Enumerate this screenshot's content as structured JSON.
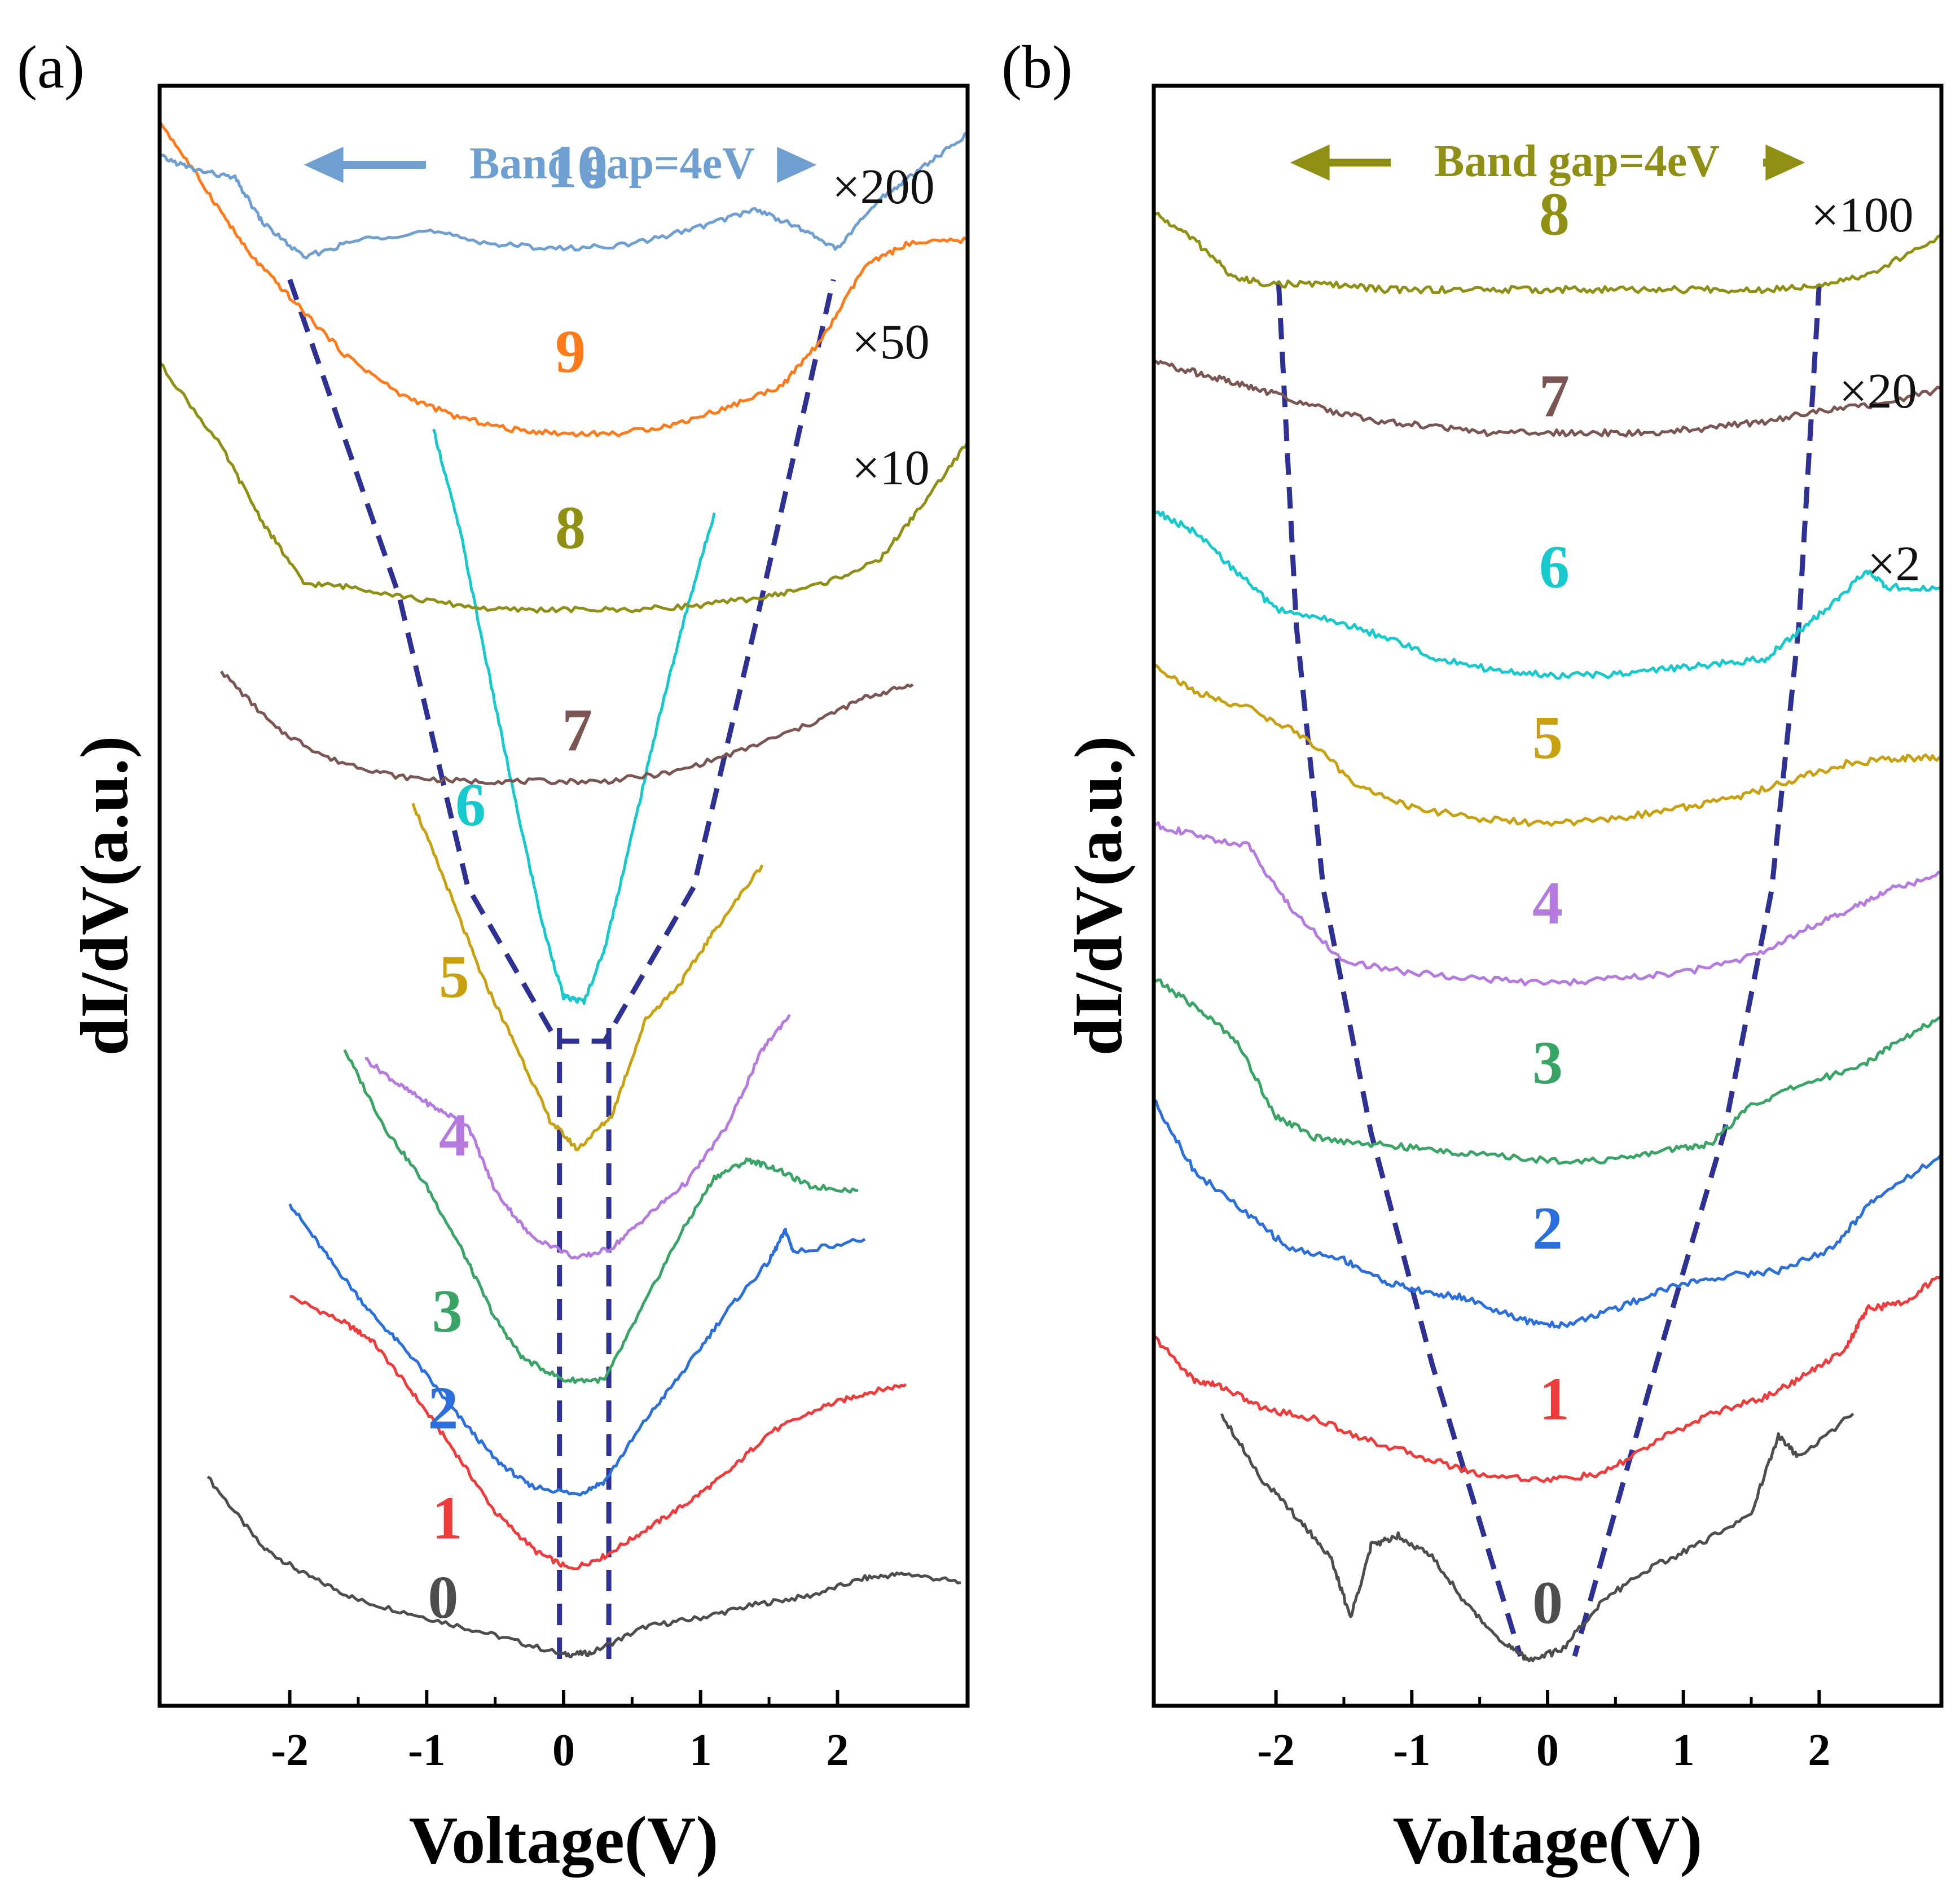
{
  "colors": {
    "curve_0": "#4d4d4d",
    "curve_1": "#ef3b3b",
    "curve_2": "#2a6fdb",
    "curve_3": "#3aa366",
    "curve_4": "#b57ae0",
    "curve_5": "#c9a010",
    "curve_6": "#17c8cc",
    "curve_7": "#7a5552",
    "curve_8": "#8f8f14",
    "curve_9": "#ff7a1a",
    "curve_10": "#6f9fd0",
    "guide_line": "#2e3192",
    "band_gap_a": "#6f9fd0",
    "band_gap_b": "#8f8f14"
  },
  "chart_data": [
    {
      "panel": "(a)",
      "type": "line",
      "xlabel": "Voltage(V)",
      "ylabel": "dI/dV(a.u.)",
      "xlim": [
        -2.95,
        2.95
      ],
      "xticks": [
        "-2",
        "-1",
        "0",
        "1",
        "2"
      ],
      "xtick_values": [
        -2,
        -1,
        0,
        1,
        2
      ],
      "band_gap_label": "Band gap=4eV",
      "band_gap_range": [
        -2.0,
        1.95
      ],
      "scale_labels": [
        {
          "text": "×200",
          "series": "10"
        },
        {
          "text": "×50",
          "series": "9"
        },
        {
          "text": "×10",
          "series": "8"
        }
      ],
      "guide_lines": [
        {
          "style": "dashed",
          "points": [
            [
              -2.0,
              10.2
            ],
            [
              -1.2,
              6.6
            ],
            [
              -0.7,
              3.3
            ],
            [
              -0.05,
              1.55
            ],
            [
              0.3,
              1.55
            ],
            [
              0.95,
              3.3
            ],
            [
              1.45,
              6.6
            ],
            [
              1.97,
              10.2
            ]
          ]
        },
        {
          "style": "dashed",
          "points": [
            [
              -0.03,
              1.7
            ],
            [
              -0.03,
              -5.6
            ]
          ]
        },
        {
          "style": "dashed",
          "points": [
            [
              0.33,
              1.7
            ],
            [
              0.33,
              -5.6
            ]
          ]
        }
      ],
      "series": [
        {
          "name": "0",
          "color": "#4d4d4d",
          "label_x": -0.88,
          "label_y": -5.0,
          "x": [
            -2.6,
            -2.2,
            -1.9,
            -1.5,
            -1.0,
            -0.5,
            0.0,
            0.2,
            0.6,
            1.0,
            1.4,
            1.8,
            2.2,
            2.5,
            2.9
          ],
          "y": [
            -3.4,
            -4.2,
            -4.5,
            -4.8,
            -5.0,
            -5.2,
            -5.42,
            -5.4,
            -5.1,
            -5.0,
            -4.85,
            -4.75,
            -4.55,
            -4.5,
            -4.6
          ]
        },
        {
          "name": "1",
          "color": "#ef3b3b",
          "label_x": -0.85,
          "label_y": -4.1,
          "x": [
            -2.0,
            -1.6,
            -1.4,
            -1.1,
            -0.8,
            -0.5,
            -0.2,
            0.05,
            0.3,
            0.6,
            0.9,
            1.2,
            1.5,
            1.9,
            2.2,
            2.5
          ],
          "y": [
            -1.35,
            -1.65,
            -1.85,
            -2.45,
            -3.1,
            -3.8,
            -4.25,
            -4.45,
            -4.3,
            -4.0,
            -3.7,
            -3.35,
            -2.9,
            -2.6,
            -2.45,
            -2.35
          ]
        },
        {
          "name": "2",
          "color": "#2a6fdb",
          "label_x": -0.88,
          "label_y": -2.85,
          "x": [
            -2.0,
            -1.7,
            -1.4,
            -1.1,
            -0.8,
            -0.5,
            -0.25,
            0.1,
            0.3,
            0.6,
            0.9,
            1.2,
            1.5,
            1.62,
            1.68,
            2.2
          ],
          "y": [
            -0.3,
            -0.95,
            -1.55,
            -2.05,
            -2.65,
            -3.2,
            -3.5,
            -3.6,
            -3.45,
            -2.75,
            -2.15,
            -1.5,
            -0.95,
            -0.6,
            -0.85,
            -0.7
          ]
        },
        {
          "name": "3",
          "color": "#3aa366",
          "label_x": -0.85,
          "label_y": -1.75,
          "x": [
            -1.6,
            -1.3,
            -1.0,
            -0.75,
            -0.5,
            -0.3,
            0.0,
            0.3,
            0.55,
            0.85,
            1.1,
            1.35,
            1.55,
            1.8,
            2.15
          ],
          "y": [
            1.45,
            0.55,
            -0.1,
            -0.8,
            -1.6,
            -2.05,
            -2.3,
            -2.3,
            -1.55,
            -0.65,
            0.0,
            0.2,
            0.1,
            -0.1,
            -0.15
          ]
        },
        {
          "name": "4",
          "color": "#b57ae0",
          "label_x": -0.8,
          "label_y": 0.25,
          "x": [
            -1.45,
            -1.2,
            -0.95,
            -0.7,
            -0.5,
            -0.25,
            0.1,
            0.35,
            0.6,
            0.9,
            1.2,
            1.45,
            1.65
          ],
          "y": [
            1.35,
            1.05,
            0.8,
            0.6,
            -0.15,
            -0.65,
            -0.92,
            -0.8,
            -0.45,
            -0.05,
            0.6,
            1.45,
            1.85
          ]
        },
        {
          "name": "5",
          "color": "#c9a010",
          "label_x": -0.8,
          "label_y": 2.05,
          "x": [
            -1.1,
            -0.85,
            -0.6,
            -0.35,
            -0.1,
            0.1,
            0.35,
            0.6,
            0.85,
            1.1,
            1.45
          ],
          "y": [
            4.25,
            3.3,
            2.3,
            1.5,
            0.65,
            0.32,
            0.7,
            1.8,
            2.2,
            2.8,
            3.55
          ]
        },
        {
          "name": "6",
          "color": "#17c8cc",
          "label_x": -0.68,
          "label_y": 4.0,
          "x": [
            -0.95,
            -0.75,
            -0.55,
            -0.35,
            -0.15,
            0.0,
            0.15,
            0.3,
            0.5,
            0.7,
            0.9,
            1.1
          ],
          "y": [
            8.5,
            7.3,
            5.75,
            4.25,
            2.85,
            2.05,
            2.0,
            2.6,
            3.9,
            5.25,
            6.45,
            7.55
          ]
        },
        {
          "name": "7",
          "color": "#7a5552",
          "label_x": 0.1,
          "label_y": 4.85,
          "x": [
            -2.5,
            -2.1,
            -1.7,
            -1.2,
            -0.7,
            -0.2,
            0.3,
            0.8,
            1.3,
            1.8,
            2.2,
            2.55
          ],
          "y": [
            5.75,
            5.1,
            4.75,
            4.55,
            4.5,
            4.5,
            4.5,
            4.6,
            4.85,
            5.15,
            5.45,
            5.6
          ]
        },
        {
          "name": "8",
          "color": "#8f8f14",
          "label_x": 0.05,
          "label_y": 7.15,
          "x": [
            -2.95,
            -2.5,
            -2.2,
            -1.9,
            -1.5,
            -1.0,
            -0.5,
            0.0,
            0.5,
            1.0,
            1.5,
            1.9,
            2.3,
            2.6,
            2.95
          ],
          "y": [
            9.25,
            8.3,
            7.45,
            6.75,
            6.7,
            6.55,
            6.45,
            6.45,
            6.45,
            6.5,
            6.6,
            6.75,
            7.0,
            7.6,
            8.35
          ]
        },
        {
          "name": "9",
          "color": "#ff7a1a",
          "label_x": 0.05,
          "label_y": 9.15,
          "x": [
            -2.95,
            -2.6,
            -2.3,
            -2.0,
            -1.6,
            -1.2,
            -0.8,
            -0.4,
            0.0,
            0.4,
            0.8,
            1.2,
            1.6,
            1.9,
            2.2,
            2.5,
            2.95
          ],
          "y": [
            12.0,
            11.2,
            10.5,
            10.0,
            9.35,
            8.9,
            8.65,
            8.5,
            8.45,
            8.45,
            8.55,
            8.75,
            9.0,
            9.55,
            10.35,
            10.6,
            10.65
          ]
        },
        {
          "name": "10",
          "color": "#6f9fd0",
          "label_x": 0.1,
          "label_y": 11.25,
          "x": [
            -2.95,
            -2.7,
            -2.4,
            -2.2,
            -1.9,
            -1.5,
            -1.0,
            -0.5,
            0.0,
            0.5,
            1.0,
            1.4,
            1.7,
            2.0,
            2.3,
            2.6,
            2.95
          ],
          "y": [
            11.6,
            11.45,
            11.35,
            10.85,
            10.45,
            10.65,
            10.75,
            10.6,
            10.55,
            10.6,
            10.8,
            11.0,
            10.8,
            10.55,
            11.1,
            11.45,
            11.85
          ]
        }
      ]
    },
    {
      "panel": "(b)",
      "type": "line",
      "xlabel": "Voltage(V)",
      "ylabel": "dI/dV(a.u.)",
      "xlim": [
        -2.9,
        2.9
      ],
      "xticks": [
        "-2",
        "-1",
        "0",
        "1",
        "2"
      ],
      "xtick_values": [
        -2,
        -1,
        0,
        1,
        2
      ],
      "band_gap_label": "Band gap=4eV",
      "band_gap_range": [
        -2.0,
        2.0
      ],
      "scale_labels": [
        {
          "text": "×100",
          "series": "8"
        },
        {
          "text": "×20",
          "series": "7"
        },
        {
          "text": "×2",
          "series": "6"
        }
      ],
      "guide_lines": [
        {
          "style": "dashed",
          "points": [
            [
              -1.98,
              10.6
            ],
            [
              -1.85,
              7.5
            ],
            [
              -1.65,
              5.1
            ],
            [
              -1.3,
              2.9
            ],
            [
              -0.85,
              0.8
            ],
            [
              -0.2,
              -1.85
            ]
          ]
        },
        {
          "style": "dashed",
          "points": [
            [
              2.0,
              10.6
            ],
            [
              1.85,
              7.5
            ],
            [
              1.65,
              5.1
            ],
            [
              1.3,
              2.9
            ],
            [
              0.8,
              0.8
            ],
            [
              0.2,
              -1.85
            ]
          ]
        }
      ],
      "series": [
        {
          "name": "0",
          "color": "#4d4d4d",
          "label_x": 0.0,
          "label_y": -1.55,
          "x": [
            -2.4,
            -2.1,
            -1.8,
            -1.6,
            -1.45,
            -1.3,
            -1.1,
            -0.85,
            -0.55,
            -0.3,
            -0.15,
            0.1,
            0.4,
            0.75,
            1.1,
            1.5,
            1.7,
            1.85,
            2.25
          ],
          "y": [
            0.35,
            -0.25,
            -0.65,
            -0.95,
            -1.5,
            -0.85,
            -0.75,
            -0.95,
            -1.45,
            -1.75,
            -1.88,
            -1.8,
            -1.35,
            -1.05,
            -0.85,
            -0.55,
            0.15,
            -0.05,
            0.35
          ]
        },
        {
          "name": "1",
          "color": "#ef3b3b",
          "label_x": 0.05,
          "label_y": 0.3,
          "x": [
            -2.9,
            -2.6,
            -2.4,
            -2.1,
            -1.7,
            -1.3,
            -0.9,
            -0.5,
            0.0,
            0.4,
            0.8,
            1.2,
            1.6,
            1.9,
            2.2,
            2.35,
            2.6,
            2.9
          ],
          "y": [
            1.05,
            0.65,
            0.6,
            0.4,
            0.3,
            0.1,
            -0.05,
            -0.2,
            -0.25,
            -0.2,
            0.1,
            0.35,
            0.5,
            0.7,
            0.95,
            1.3,
            1.35,
            1.6
          ]
        },
        {
          "name": "2",
          "color": "#2a6fdb",
          "label_x": 0.0,
          "label_y": 1.85,
          "x": [
            -2.9,
            -2.6,
            -2.2,
            -1.9,
            -1.5,
            -1.2,
            -0.9,
            -0.6,
            -0.2,
            0.1,
            0.5,
            0.9,
            1.3,
            1.7,
            2.1,
            2.4,
            2.9
          ],
          "y": [
            3.2,
            2.55,
            2.15,
            1.85,
            1.75,
            1.55,
            1.45,
            1.4,
            1.2,
            1.15,
            1.3,
            1.5,
            1.6,
            1.65,
            1.85,
            2.3,
            2.7
          ]
        },
        {
          "name": "3",
          "color": "#3aa366",
          "label_x": 0.0,
          "label_y": 3.35,
          "x": [
            -2.9,
            -2.6,
            -2.3,
            -2.0,
            -1.7,
            -1.3,
            -0.9,
            -0.5,
            0.0,
            0.5,
            0.9,
            1.2,
            1.5,
            1.9,
            2.3,
            2.6,
            2.9
          ],
          "y": [
            4.3,
            4.05,
            3.75,
            3.05,
            2.85,
            2.8,
            2.75,
            2.7,
            2.65,
            2.65,
            2.75,
            2.8,
            3.15,
            3.35,
            3.5,
            3.75,
            3.95
          ]
        },
        {
          "name": "4",
          "color": "#b57ae0",
          "label_x": 0.0,
          "label_y": 4.8,
          "x": [
            -2.9,
            -2.6,
            -2.2,
            -1.9,
            -1.5,
            -1.0,
            -0.5,
            0.0,
            0.5,
            1.0,
            1.5,
            1.9,
            2.2,
            2.5,
            2.9
          ],
          "y": [
            5.7,
            5.6,
            5.5,
            4.95,
            4.45,
            4.35,
            4.3,
            4.25,
            4.3,
            4.35,
            4.5,
            4.75,
            4.9,
            5.1,
            5.25
          ]
        },
        {
          "name": "5",
          "color": "#c9a010",
          "label_x": 0.0,
          "label_y": 6.3,
          "x": [
            -2.9,
            -2.6,
            -2.2,
            -1.8,
            -1.4,
            -1.0,
            -0.5,
            0.0,
            0.5,
            1.0,
            1.4,
            1.8,
            2.2,
            2.6,
            2.9
          ],
          "y": [
            7.15,
            6.9,
            6.75,
            6.5,
            6.05,
            5.85,
            5.75,
            5.7,
            5.75,
            5.85,
            5.95,
            6.1,
            6.25,
            6.3,
            6.3
          ]
        },
        {
          "name": "6",
          "color": "#17c8cc",
          "label_x": 0.05,
          "label_y": 7.85,
          "x": [
            -2.9,
            -2.6,
            -2.3,
            -2.0,
            -1.6,
            -1.2,
            -0.8,
            -0.4,
            0.0,
            0.4,
            0.8,
            1.2,
            1.6,
            1.85,
            2.1,
            2.35,
            2.5,
            2.9
          ],
          "y": [
            8.55,
            8.35,
            8.0,
            7.65,
            7.55,
            7.4,
            7.2,
            7.1,
            7.05,
            7.05,
            7.1,
            7.15,
            7.2,
            7.45,
            7.7,
            8.0,
            7.85,
            7.85
          ]
        },
        {
          "name": "7",
          "color": "#7a5552",
          "label_x": 0.05,
          "label_y": 9.4,
          "x": [
            -2.9,
            -2.6,
            -2.3,
            -2.0,
            -1.6,
            -1.2,
            -0.8,
            -0.4,
            0.0,
            0.4,
            0.8,
            1.2,
            1.6,
            2.0,
            2.4,
            2.9
          ],
          "y": [
            9.9,
            9.8,
            9.7,
            9.6,
            9.45,
            9.35,
            9.3,
            9.25,
            9.25,
            9.25,
            9.25,
            9.3,
            9.35,
            9.45,
            9.5,
            9.65
          ]
        },
        {
          "name": "8",
          "color": "#8f8f14",
          "label_x": 0.05,
          "label_y": 11.05,
          "x": [
            -2.9,
            -2.6,
            -2.3,
            -2.0,
            -1.6,
            -1.2,
            -0.8,
            -0.4,
            0.0,
            0.4,
            0.8,
            1.2,
            1.6,
            2.0,
            2.4,
            2.9
          ],
          "y": [
            11.25,
            11.0,
            10.65,
            10.6,
            10.6,
            10.55,
            10.55,
            10.55,
            10.55,
            10.55,
            10.55,
            10.55,
            10.55,
            10.6,
            10.7,
            11.05
          ]
        }
      ]
    }
  ],
  "panel_a": {
    "tag": "(a)"
  },
  "panel_b": {
    "tag": "(b)"
  }
}
